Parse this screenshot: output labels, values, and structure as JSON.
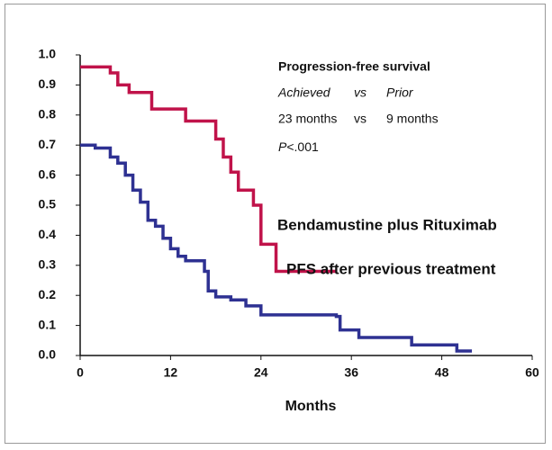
{
  "chart_data": {
    "type": "step",
    "x_label": "Months",
    "xlim": [
      0,
      60
    ],
    "xticks": [
      0,
      12,
      24,
      36,
      48,
      60
    ],
    "ylim": [
      0,
      1
    ],
    "yticks": [
      {
        "value": 0,
        "label": "0.0"
      },
      0.1,
      0.2,
      0.3,
      0.4,
      0.5,
      0.6,
      0.7,
      0.8,
      0.9,
      {
        "value": 1,
        "label": "1.0"
      }
    ],
    "annotation": {
      "title": "Progression-free survival",
      "left_head": "Achieved",
      "vs": "vs",
      "right_head": "Prior",
      "left_value": "23 months",
      "right_value": "9 months",
      "p_symbol": "P",
      "p_value": "<.001"
    },
    "series": [
      {
        "name": "Bendamustine plus Rituximab",
        "color": "#c0134a",
        "x": [
          0,
          4,
          5,
          6.5,
          9.5,
          14,
          18,
          19,
          20,
          21,
          23,
          24,
          26,
          34
        ],
        "values": [
          0.96,
          0.94,
          0.9,
          0.875,
          0.82,
          0.78,
          0.72,
          0.66,
          0.61,
          0.55,
          0.5,
          0.37,
          0.28,
          0.28
        ]
      },
      {
        "name": "PFS after previous treatment",
        "color": "#2e3192",
        "x": [
          0,
          2,
          4,
          5,
          6,
          7,
          8,
          9,
          10,
          11,
          12,
          13,
          14,
          16.5,
          17,
          18,
          20,
          22,
          24,
          34,
          34.5,
          37,
          44,
          50,
          52
        ],
        "values": [
          0.7,
          0.69,
          0.66,
          0.64,
          0.6,
          0.55,
          0.51,
          0.45,
          0.43,
          0.39,
          0.355,
          0.33,
          0.315,
          0.28,
          0.215,
          0.195,
          0.185,
          0.165,
          0.135,
          0.13,
          0.085,
          0.06,
          0.035,
          0.015,
          0.015
        ]
      }
    ]
  }
}
